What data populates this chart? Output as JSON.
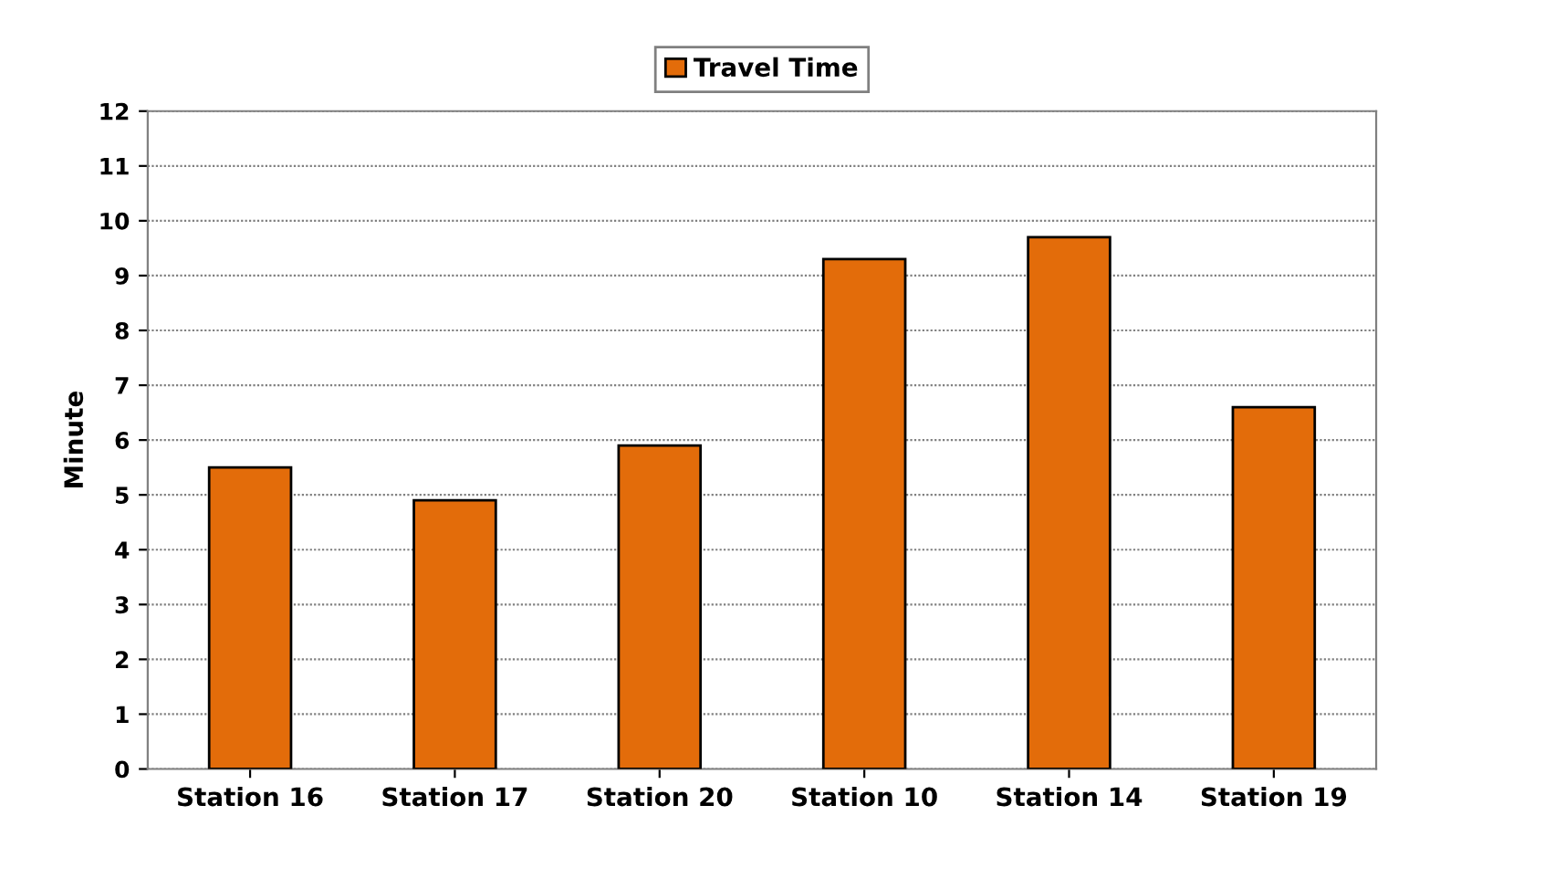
{
  "chart_data": {
    "type": "bar",
    "ylabel": "Minute",
    "categories": [
      "Station 16",
      "Station 17",
      "Station 20",
      "Station 10",
      "Station 14",
      "Station 19"
    ],
    "series": [
      {
        "name": "Travel Time",
        "color": "#e36c0a",
        "values": [
          5.5,
          4.9,
          5.9,
          9.3,
          9.7,
          6.6
        ]
      }
    ],
    "ylim": [
      0,
      12
    ],
    "yticks": [
      0,
      1,
      2,
      3,
      4,
      5,
      6,
      7,
      8,
      9,
      10,
      11,
      12
    ],
    "grid": "y",
    "legend": "top"
  }
}
